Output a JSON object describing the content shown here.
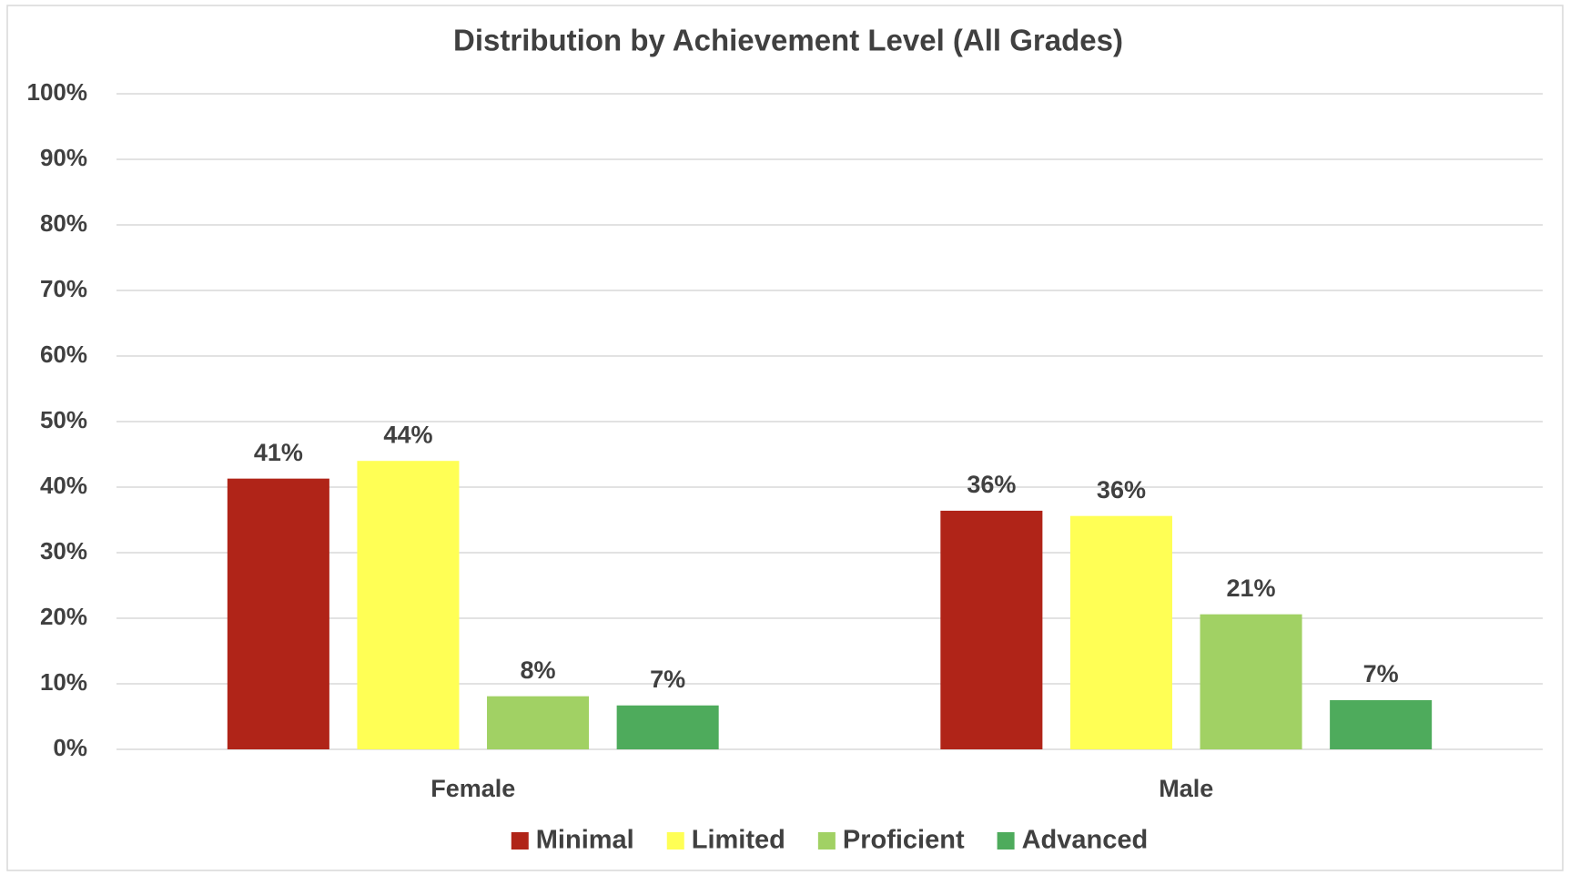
{
  "chart_data": {
    "type": "bar",
    "title": "Distribution by Achievement Level (All Grades)",
    "categories": [
      "Female",
      "Male"
    ],
    "series": [
      {
        "name": "Minimal",
        "color": "#b02418",
        "values": [
          41.3,
          36.4
        ],
        "value_labels": [
          "41%",
          "36%"
        ]
      },
      {
        "name": "Limited",
        "color": "#ffff55",
        "values": [
          44.0,
          35.6
        ],
        "value_labels": [
          "44%",
          "36%"
        ]
      },
      {
        "name": "Proficient",
        "color": "#a1d164",
        "values": [
          8.1,
          20.6
        ],
        "value_labels": [
          "8%",
          "21%"
        ]
      },
      {
        "name": "Advanced",
        "color": "#4eab5c",
        "values": [
          6.7,
          7.5
        ],
        "value_labels": [
          "7%",
          "7%"
        ]
      }
    ],
    "ylim": [
      0,
      100
    ],
    "yticks": [
      {
        "value": 0,
        "label": "0%"
      },
      {
        "value": 10,
        "label": "10%"
      },
      {
        "value": 20,
        "label": "20%"
      },
      {
        "value": 30,
        "label": "30%"
      },
      {
        "value": 40,
        "label": "40%"
      },
      {
        "value": 50,
        "label": "50%"
      },
      {
        "value": 60,
        "label": "60%"
      },
      {
        "value": 70,
        "label": "70%"
      },
      {
        "value": 80,
        "label": "80%"
      },
      {
        "value": 90,
        "label": "90%"
      },
      {
        "value": 100,
        "label": "100%"
      }
    ],
    "grid": true,
    "legend": "bottom"
  }
}
